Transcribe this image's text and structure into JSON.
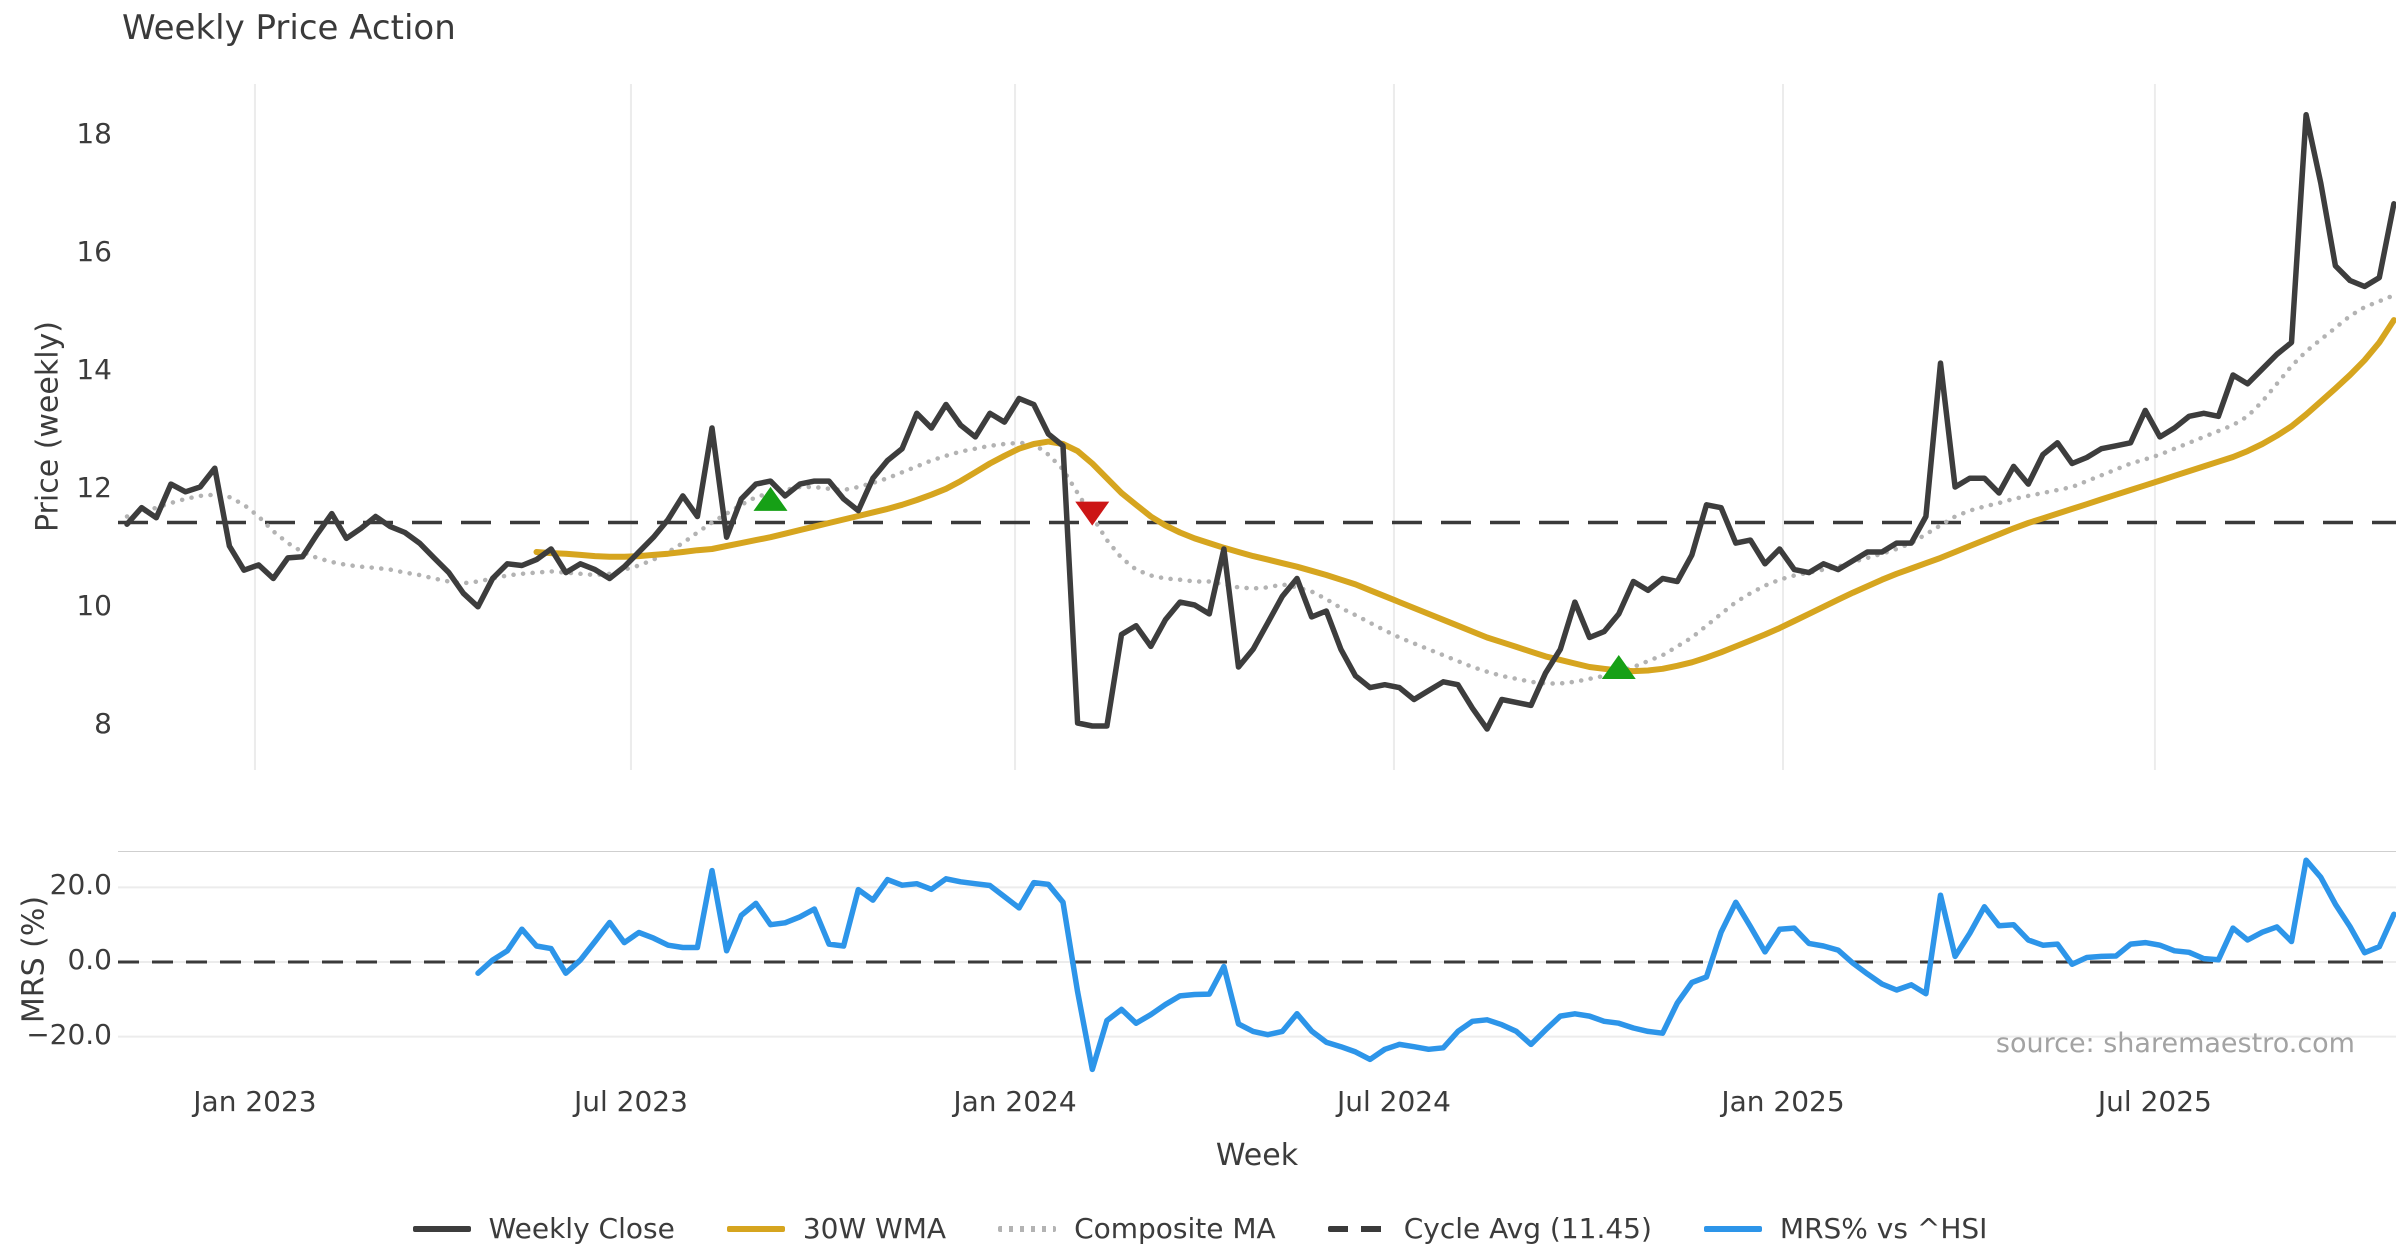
{
  "figure": {
    "title": "Weekly Price Action",
    "source_text": "source: sharemaestro.com",
    "background": "#ffffff"
  },
  "colors": {
    "weekly_close": "#3d3d3d",
    "wma_30w": "#d6a51f",
    "composite_ma": "#b3b3b3",
    "cycle_avg": "#3a3a3a",
    "mrs_line": "#2d95e9",
    "buy_marker": "#16a016",
    "sell_marker": "#cc1616",
    "grid": "#ececec",
    "panel_spine": "#cfcfcf",
    "text": "#3c3c3c",
    "source": "#a3a3a3"
  },
  "legend": [
    {
      "label": "Weekly Close",
      "color": "#3d3d3d",
      "style": "solid"
    },
    {
      "label": "30W WMA",
      "color": "#d6a51f",
      "style": "solid"
    },
    {
      "label": "Composite MA",
      "color": "#b3b3b3",
      "style": "dotted"
    },
    {
      "label": "Cycle Avg (11.45)",
      "color": "#3a3a3a",
      "style": "dashed"
    },
    {
      "label": "MRS% vs ^HSI",
      "color": "#2d95e9",
      "style": "solid"
    }
  ],
  "xaxis": {
    "label": "Week",
    "ticks": [
      {
        "label": "Jan 2023",
        "week": 8.75
      },
      {
        "label": "Jul 2023",
        "week": 34.46
      },
      {
        "label": "Jan 2024",
        "week": 60.72
      },
      {
        "label": "Jul 2024",
        "week": 86.63
      },
      {
        "label": "Jan 2025",
        "week": 113.23
      },
      {
        "label": "Jul 2025",
        "week": 138.66
      }
    ]
  },
  "chart_data": [
    {
      "type": "line",
      "panel": "price",
      "title": "Weekly Price Action",
      "xlabel": "Week",
      "ylabel": "Price (weekly)",
      "ylim": [
        7.25,
        18.9
      ],
      "yticks": [
        8,
        10,
        12,
        14,
        16,
        18
      ],
      "grid": "vertical-only",
      "x_unit": "week index (weekly data, ~Nov 2022 to ~Nov 2025)",
      "series": [
        {
          "name": "Weekly Close",
          "color": "#3d3d3d",
          "style": "solid",
          "start_week": 0,
          "values": [
            11.42,
            11.7,
            11.53,
            12.1,
            11.97,
            12.05,
            12.37,
            11.05,
            10.64,
            10.73,
            10.5,
            10.85,
            10.87,
            11.25,
            11.6,
            11.18,
            11.35,
            11.55,
            11.38,
            11.28,
            11.1,
            10.85,
            10.6,
            10.25,
            10.02,
            10.5,
            10.75,
            10.72,
            10.82,
            11.0,
            10.6,
            10.75,
            10.65,
            10.5,
            10.7,
            10.95,
            11.2,
            11.5,
            11.9,
            11.55,
            13.05,
            11.2,
            11.85,
            12.1,
            12.15,
            11.9,
            12.1,
            12.15,
            12.15,
            11.85,
            11.65,
            12.2,
            12.5,
            12.7,
            13.3,
            13.05,
            13.45,
            13.1,
            12.9,
            13.3,
            13.15,
            13.55,
            13.45,
            12.95,
            12.75,
            8.05,
            8.0,
            8.0,
            9.55,
            9.7,
            9.35,
            9.8,
            10.1,
            10.05,
            9.9,
            11.0,
            9.0,
            9.3,
            9.75,
            10.2,
            10.5,
            9.85,
            9.95,
            9.3,
            8.85,
            8.65,
            8.7,
            8.65,
            8.45,
            8.6,
            8.75,
            8.7,
            8.3,
            7.95,
            8.45,
            8.4,
            8.35,
            8.9,
            9.3,
            10.1,
            9.5,
            9.6,
            9.9,
            10.45,
            10.3,
            10.5,
            10.45,
            10.9,
            11.75,
            11.7,
            11.1,
            11.15,
            10.75,
            11.0,
            10.65,
            10.6,
            10.75,
            10.65,
            10.8,
            10.95,
            10.95,
            11.1,
            11.1,
            11.55,
            14.15,
            12.05,
            12.2,
            12.2,
            11.95,
            12.4,
            12.1,
            12.6,
            12.8,
            12.45,
            12.55,
            12.7,
            12.75,
            12.8,
            13.35,
            12.9,
            13.05,
            13.25,
            13.3,
            13.25,
            13.95,
            13.8,
            14.05,
            14.3,
            14.5,
            18.36,
            17.2,
            15.8,
            15.55,
            15.45,
            15.6,
            16.85
          ]
        },
        {
          "name": "30W WMA",
          "color": "#d6a51f",
          "style": "solid",
          "start_week": 28,
          "values": [
            10.95,
            10.93,
            10.92,
            10.9,
            10.88,
            10.87,
            10.87,
            10.88,
            10.9,
            10.92,
            10.95,
            10.98,
            11.0,
            11.05,
            11.1,
            11.15,
            11.2,
            11.26,
            11.32,
            11.38,
            11.44,
            11.5,
            11.56,
            11.62,
            11.68,
            11.75,
            11.83,
            11.92,
            12.02,
            12.15,
            12.3,
            12.45,
            12.58,
            12.7,
            12.78,
            12.82,
            12.78,
            12.66,
            12.45,
            12.2,
            11.95,
            11.75,
            11.55,
            11.4,
            11.28,
            11.18,
            11.1,
            11.02,
            10.95,
            10.88,
            10.82,
            10.76,
            10.7,
            10.63,
            10.56,
            10.48,
            10.4,
            10.3,
            10.2,
            10.1,
            10.0,
            9.9,
            9.8,
            9.7,
            9.6,
            9.5,
            9.42,
            9.34,
            9.26,
            9.18,
            9.12,
            9.06,
            9.0,
            8.97,
            8.94,
            8.93,
            8.94,
            8.97,
            9.02,
            9.08,
            9.16,
            9.25,
            9.35,
            9.45,
            9.55,
            9.66,
            9.78,
            9.9,
            10.02,
            10.14,
            10.26,
            10.37,
            10.48,
            10.58,
            10.67,
            10.76,
            10.85,
            10.95,
            11.05,
            11.15,
            11.25,
            11.35,
            11.44,
            11.52,
            11.6,
            11.68,
            11.76,
            11.84,
            11.92,
            12.0,
            12.08,
            12.16,
            12.24,
            12.32,
            12.4,
            12.48,
            12.56,
            12.66,
            12.78,
            12.92,
            13.08,
            13.28,
            13.5,
            13.72,
            13.95,
            14.2,
            14.5,
            14.88
          ]
        },
        {
          "name": "Composite MA",
          "color": "#b3b3b3",
          "style": "dotted",
          "start_week": 0,
          "values": [
            11.55,
            11.62,
            11.7,
            11.78,
            11.85,
            11.9,
            11.92,
            11.88,
            11.75,
            11.55,
            11.3,
            11.1,
            10.95,
            10.85,
            10.78,
            10.73,
            10.7,
            10.68,
            10.65,
            10.6,
            10.56,
            10.5,
            10.45,
            10.42,
            10.45,
            10.5,
            10.55,
            10.58,
            10.6,
            10.62,
            10.6,
            10.58,
            10.56,
            10.58,
            10.65,
            10.72,
            10.82,
            10.95,
            11.1,
            11.28,
            11.45,
            11.6,
            11.75,
            11.88,
            11.95,
            12.0,
            12.05,
            12.05,
            12.02,
            12.0,
            12.05,
            12.12,
            12.2,
            12.3,
            12.4,
            12.5,
            12.58,
            12.65,
            12.7,
            12.75,
            12.78,
            12.8,
            12.78,
            12.6,
            12.35,
            11.95,
            11.55,
            11.15,
            10.85,
            10.65,
            10.55,
            10.5,
            10.48,
            10.45,
            10.45,
            10.4,
            10.35,
            10.33,
            10.35,
            10.4,
            10.35,
            10.28,
            10.15,
            10.0,
            9.88,
            9.75,
            9.62,
            9.5,
            9.4,
            9.3,
            9.2,
            9.1,
            9.0,
            8.92,
            8.85,
            8.8,
            8.75,
            8.72,
            8.72,
            8.75,
            8.8,
            8.85,
            8.92,
            9.0,
            9.1,
            9.2,
            9.35,
            9.5,
            9.7,
            9.9,
            10.1,
            10.25,
            10.38,
            10.48,
            10.55,
            10.6,
            10.65,
            10.7,
            10.78,
            10.85,
            10.92,
            11.0,
            11.1,
            11.25,
            11.4,
            11.55,
            11.65,
            11.72,
            11.78,
            11.85,
            11.9,
            11.95,
            12.0,
            12.05,
            12.15,
            12.25,
            12.35,
            12.45,
            12.52,
            12.6,
            12.7,
            12.8,
            12.9,
            13.0,
            13.1,
            13.25,
            13.5,
            13.8,
            14.1,
            14.35,
            14.55,
            14.75,
            14.95,
            15.1,
            15.2,
            15.3
          ]
        },
        {
          "name": "Cycle Avg (11.45)",
          "color": "#3a3a3a",
          "style": "dashed",
          "type": "hline",
          "value": 11.45
        }
      ],
      "markers": [
        {
          "week": 44,
          "price": 11.85,
          "shape": "triangle-up",
          "color": "#16a016",
          "meaning": "buy-signal"
        },
        {
          "week": 66,
          "price": 11.6,
          "shape": "triangle-down",
          "color": "#cc1616",
          "meaning": "sell-signal"
        },
        {
          "week": 102,
          "price": 9.0,
          "shape": "triangle-up",
          "color": "#16a016",
          "meaning": "buy-signal"
        }
      ]
    },
    {
      "type": "line",
      "panel": "mrs",
      "ylabel": "MRS (%)",
      "ylim": [
        -29.5,
        29.8
      ],
      "yticks": [
        20,
        0,
        -20
      ],
      "ytick_labels": [
        "20.0",
        "0.0",
        "−20.0"
      ],
      "grid": "horizontal-only",
      "series": [
        {
          "name": "MRS% vs ^HSI",
          "color": "#2d95e9",
          "style": "solid",
          "start_week": 24,
          "values": [
            -3.0,
            0.5,
            3.0,
            8.8,
            4.3,
            3.6,
            -3.0,
            0.5,
            5.5,
            10.6,
            5.2,
            7.9,
            6.4,
            4.5,
            3.9,
            3.9,
            24.5,
            3.0,
            12.5,
            15.7,
            10.0,
            10.5,
            12.1,
            14.2,
            4.8,
            4.3,
            19.4,
            16.6,
            22.1,
            20.6,
            21.0,
            19.5,
            22.3,
            21.5,
            21.0,
            20.5,
            17.5,
            14.5,
            21.3,
            20.8,
            16.0,
            -8.0,
            -28.8,
            -15.7,
            -12.7,
            -16.4,
            -14.1,
            -11.4,
            -9.1,
            -8.7,
            -8.6,
            -1.2,
            -16.6,
            -18.6,
            -19.5,
            -18.6,
            -13.9,
            -18.5,
            -21.5,
            -22.7,
            -24.1,
            -26.1,
            -23.4,
            -22.1,
            -22.7,
            -23.4,
            -23.0,
            -18.6,
            -15.9,
            -15.5,
            -16.8,
            -18.6,
            -22.1,
            -18.2,
            -14.5,
            -13.9,
            -14.5,
            -15.9,
            -16.4,
            -17.7,
            -18.6,
            -19.1,
            -11.0,
            -5.5,
            -4.0,
            8.0,
            16.0,
            9.5,
            2.7,
            8.8,
            9.1,
            5.0,
            4.3,
            3.2,
            -0.3,
            -3.2,
            -5.9,
            -7.5,
            -6.1,
            -8.5,
            17.9,
            1.5,
            7.7,
            14.8,
            9.7,
            10.0,
            5.9,
            4.5,
            4.8,
            -0.6,
            1.2,
            1.5,
            1.6,
            4.8,
            5.2,
            4.5,
            3.0,
            2.6,
            0.9,
            0.6,
            9.1,
            5.9,
            8.0,
            9.4,
            5.5,
            27.3,
            22.7,
            15.5,
            9.5,
            2.5,
            4.1,
            12.8
          ]
        },
        {
          "name": "Zero line",
          "color": "#3a3a3a",
          "style": "dashed",
          "type": "hline",
          "value": 0
        }
      ]
    }
  ]
}
